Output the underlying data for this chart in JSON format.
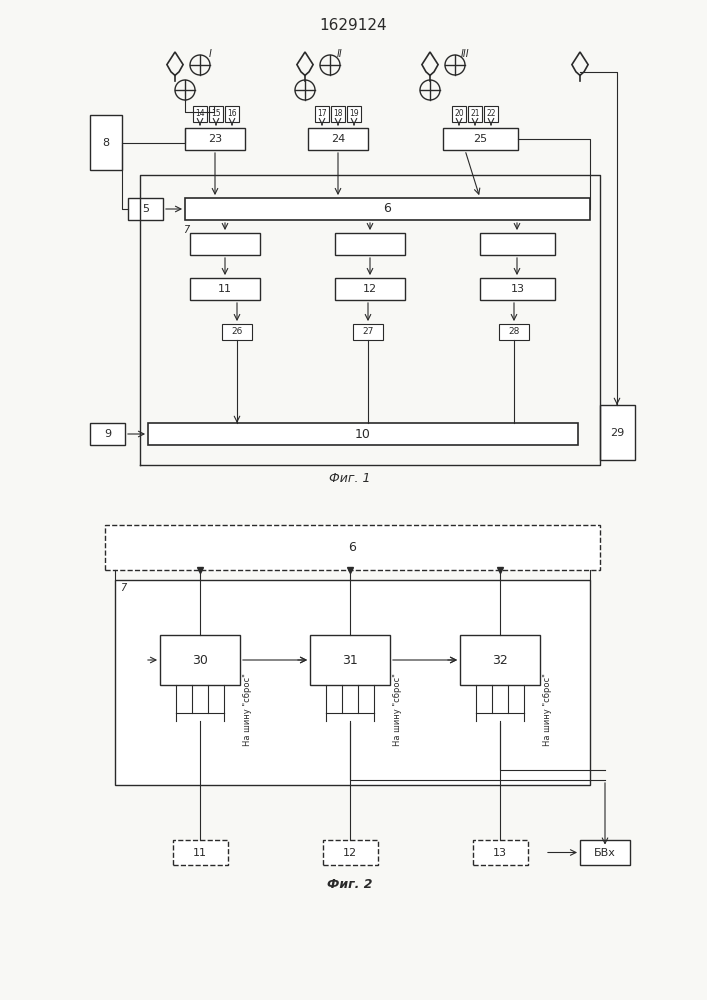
{
  "title": "1629124",
  "fig1_caption": "Фиг. 1",
  "fig2_caption": "Фиг. 2",
  "bg_color": "#f5f5f0",
  "line_color": "#2a2a2a",
  "box_color": "#ffffff",
  "line_width": 1.2,
  "thin_line": 0.8
}
